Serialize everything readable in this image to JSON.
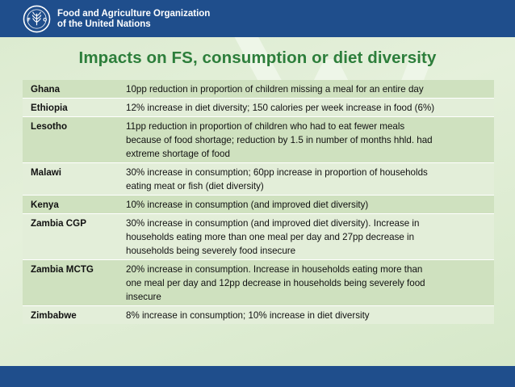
{
  "header": {
    "org_line1": "Food and Agriculture Organization",
    "org_line2": "of the United Nations",
    "logo_icon": "fao-emblem-icon",
    "brand_color": "#1f4e8c"
  },
  "slide": {
    "title": "Impacts on FS, consumption or diet diversity",
    "title_color": "#2d7e3b"
  },
  "table": {
    "rows": [
      {
        "country": "Ghana",
        "lines": [
          "10pp reduction in proportion of children missing a meal for an entire day"
        ]
      },
      {
        "country": "Ethiopia",
        "lines": [
          "12% increase in diet diversity; 150 calories per week increase in food (6%)"
        ]
      },
      {
        "country": "Lesotho",
        "lines": [
          "11pp reduction in proportion of children who had to eat fewer meals",
          "because of food shortage;  reduction by 1.5 in number of months hhld. had",
          "extreme shortage of food"
        ]
      },
      {
        "country": "Malawi",
        "lines": [
          "30% increase in consumption; 60pp increase in proportion of households",
          "eating meat or fish (diet diversity)"
        ]
      },
      {
        "country": "Kenya",
        "lines": [
          "10% increase in consumption (and improved diet diversity)"
        ]
      },
      {
        "country": "Zambia CGP",
        "lines": [
          "30% increase in consumption (and improved diet diversity). Increase in",
          "households eating more than one meal per day and 27pp decrease in",
          "households being severely food insecure"
        ]
      },
      {
        "country": "Zambia MCTG",
        "lines": [
          "20% increase in consumption. Increase in households eating more than",
          "one meal per day and 12pp decrease in households being severely food",
          "insecure"
        ]
      },
      {
        "country": "Zimbabwe",
        "lines": [
          "8% increase in consumption; 10% increase in diet diversity"
        ]
      }
    ]
  }
}
